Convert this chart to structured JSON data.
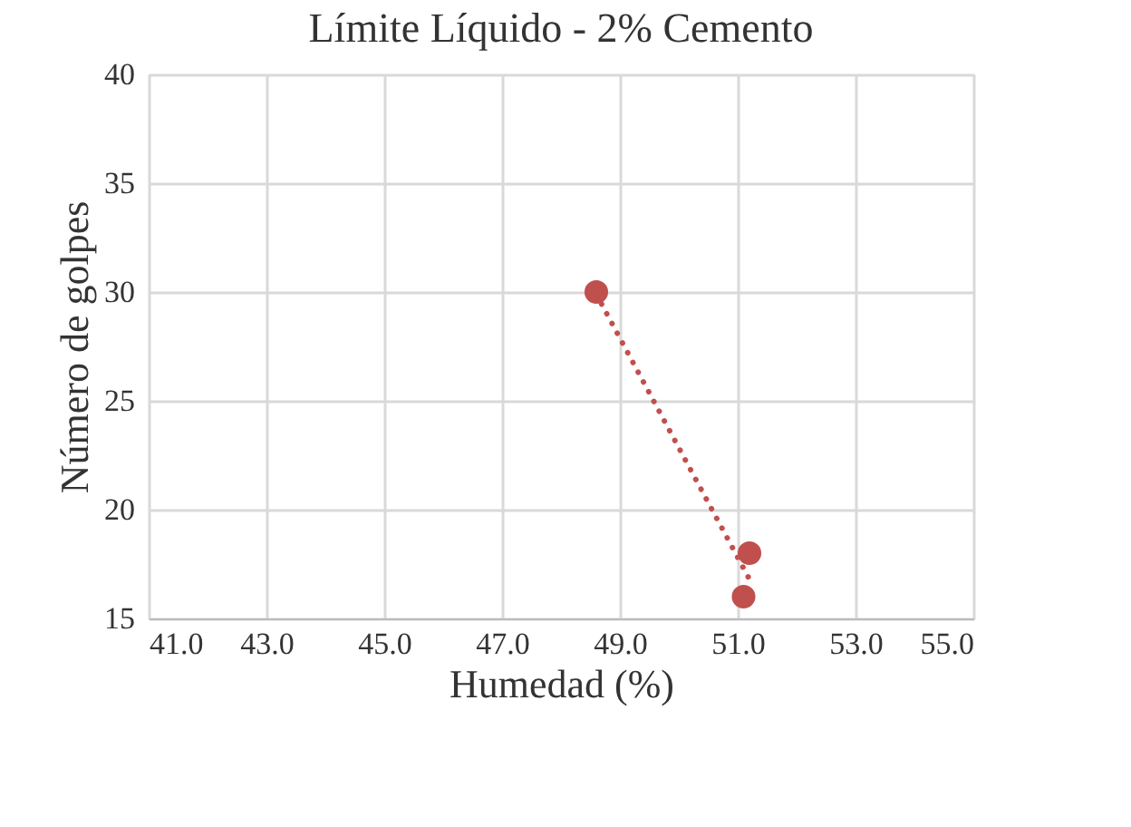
{
  "chart_data": {
    "type": "scatter",
    "title": "Límite Líquido - 2% Cemento",
    "xlabel": "Humedad (%)",
    "ylabel": "Número de golpes",
    "x": [
      48.6,
      51.2,
      51.1
    ],
    "series": [
      {
        "color": "#c0504d",
        "values": [
          30,
          18,
          16
        ],
        "marker": "circle"
      },
      {
        "type": "line",
        "color": "#c0504d",
        "x": [
          48.6,
          51.2
        ],
        "values": [
          29.9,
          16.8
        ],
        "line_style": "dotted",
        "marker": "none"
      }
    ],
    "xlim": [
      41,
      55
    ],
    "xticks": [
      {
        "value": 41,
        "label": "41.0"
      },
      {
        "value": 43,
        "label": "43.0"
      },
      {
        "value": 45,
        "label": "45.0"
      },
      {
        "value": 47,
        "label": "47.0"
      },
      {
        "value": 49,
        "label": "49.0"
      },
      {
        "value": 51,
        "label": "51.0"
      },
      {
        "value": 53,
        "label": "53.0"
      },
      {
        "value": 55,
        "label": "55.0"
      }
    ],
    "ylim": [
      15,
      40
    ],
    "yticks": [
      15,
      20,
      25,
      30,
      35,
      40
    ],
    "grid": true
  }
}
